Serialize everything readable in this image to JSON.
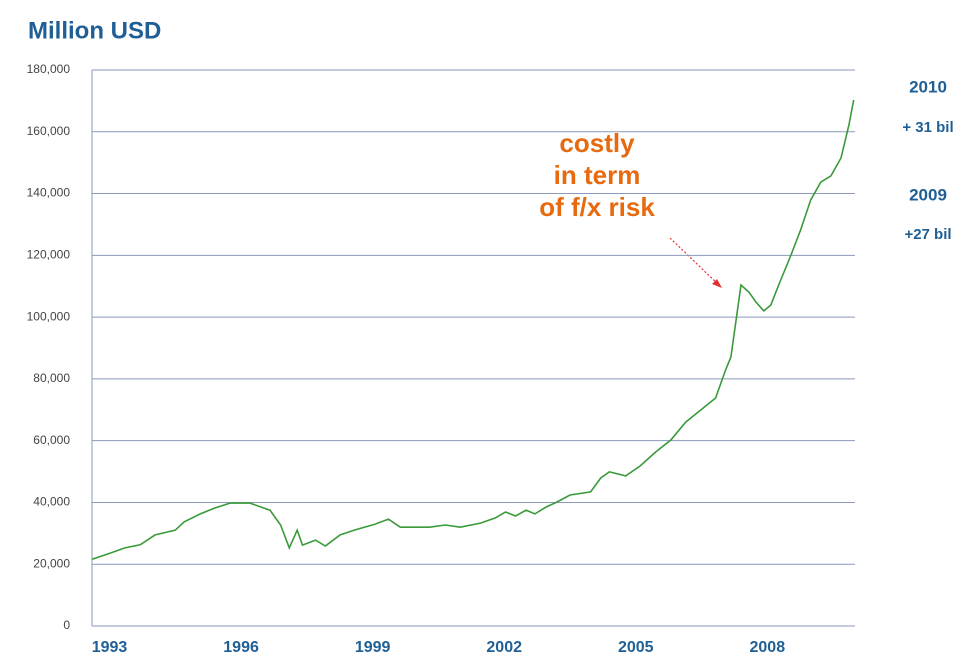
{
  "chart_data": {
    "type": "line",
    "title": "Million USD",
    "x": [
      1992.6,
      1993.0,
      1993.35,
      1993.7,
      1994.04,
      1994.5,
      1994.7,
      1995.07,
      1995.4,
      1995.75,
      1996.2,
      1996.66,
      1996.9,
      1997.1,
      1997.28,
      1997.4,
      1997.7,
      1997.92,
      1998.26,
      1998.6,
      1999.06,
      1999.36,
      1999.63,
      2000.3,
      2000.66,
      2001.0,
      2001.46,
      2001.8,
      2002.03,
      2002.26,
      2002.5,
      2002.7,
      2002.95,
      2003.2,
      2003.5,
      2003.97,
      2004.2,
      2004.4,
      2004.77,
      2005.1,
      2005.45,
      2005.8,
      2006.14,
      2006.48,
      2006.82,
      2007.05,
      2007.17,
      2007.4,
      2007.58,
      2007.74,
      2007.92,
      2008.08,
      2008.26,
      2008.54,
      2008.76,
      2008.99,
      2009.22,
      2009.45,
      2009.68,
      2009.86,
      2009.97
    ],
    "series": [
      {
        "color": "#3a9a3a",
        "values": [
          21600,
          23500,
          25300,
          26300,
          29500,
          31000,
          33700,
          36300,
          38200,
          39800,
          39800,
          37500,
          32700,
          25300,
          31000,
          26200,
          27800,
          25900,
          29500,
          31100,
          33000,
          34600,
          32000,
          32000,
          32700,
          32000,
          33300,
          35000,
          36900,
          35600,
          37500,
          36300,
          38500,
          40100,
          42400,
          43400,
          47900,
          49900,
          48600,
          51800,
          56300,
          60200,
          66000,
          69900,
          73800,
          82900,
          87100,
          110400,
          108100,
          104900,
          102000,
          103900,
          110400,
          120100,
          128200,
          137900,
          143700,
          145700,
          151500,
          162200,
          170300
        ]
      }
    ],
    "xlim": [
      1992.6,
      2010.0
    ],
    "xticks": [
      1993,
      1996,
      1999,
      2002,
      2005,
      2008
    ],
    "ylim": [
      0,
      180000
    ],
    "yticks": [
      0,
      {
        "value": 20000,
        "label": "20,000"
      },
      {
        "value": 40000,
        "label": "40,000"
      },
      {
        "value": 60000,
        "label": "60,000"
      },
      {
        "value": 80000,
        "label": "80,000"
      },
      {
        "value": 100000,
        "label": "100,000"
      },
      {
        "value": 120000,
        "label": "120,000"
      },
      {
        "value": 140000,
        "label": "140,000"
      },
      {
        "value": 160000,
        "label": "160,000"
      },
      {
        "value": 180000,
        "label": "180,000"
      }
    ],
    "grid": true,
    "annotation": [
      "costly",
      "in term",
      "of f/x risk"
    ],
    "side_notes": [
      "2010",
      "+ 31 bil",
      "2009",
      "+27 bil"
    ]
  }
}
